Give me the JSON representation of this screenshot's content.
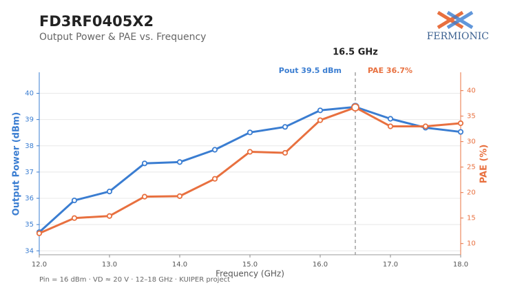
{
  "chart_data": {
    "type": "line",
    "title": "FD3RF0405X2",
    "subtitle": "Output Power & PAE vs. Frequency",
    "logo": "FERMIONIC",
    "xlabel": "Frequency (GHz)",
    "ylabel": "Output Power (dBm)",
    "y2label": "PAE (%)",
    "footnote": "Pin = 16 dBm · VD ≈ 20 V · 12–18 GHz · KUIPER project",
    "x": [
      12.0,
      12.5,
      13.0,
      13.5,
      14.0,
      14.5,
      15.0,
      15.5,
      16.0,
      16.5,
      17.0,
      17.5,
      18.0
    ],
    "series": [
      {
        "name": "Pout",
        "color": "#3a7dd1",
        "axis": "y",
        "values": [
          34.71,
          35.92,
          36.26,
          37.33,
          37.38,
          37.85,
          38.51,
          38.72,
          39.35,
          39.48,
          39.03,
          38.69,
          38.53
        ]
      },
      {
        "name": "PAE",
        "color": "#e8703f",
        "axis": "y2",
        "values": [
          12.0,
          15.0,
          15.4,
          19.2,
          19.3,
          22.7,
          28.0,
          27.8,
          34.2,
          36.7,
          33.0,
          33.0,
          33.6
        ]
      }
    ],
    "marker": {
      "x": 16.5,
      "label": "16.5 GHz",
      "annotations": [
        "Pout 39.5 dBm",
        "PAE 36.7%"
      ]
    },
    "xlim": [
      12,
      18
    ],
    "xticks": [
      {
        "value": 12,
        "label": "12.0"
      },
      {
        "value": 13,
        "label": "13.0"
      },
      {
        "value": 14,
        "label": "14.0"
      },
      {
        "value": 15,
        "label": "15.0"
      },
      {
        "value": 16,
        "label": "16.0"
      },
      {
        "value": 17,
        "label": "17.0"
      },
      {
        "value": 18,
        "label": "18.0"
      }
    ],
    "ylim": [
      33.85,
      40.8
    ],
    "yticks": [
      34,
      35,
      36,
      37,
      38,
      39,
      40
    ],
    "y2lim": [
      7.8,
      43.6
    ],
    "y2ticks": [
      10,
      15,
      20,
      25,
      30,
      35,
      40
    ],
    "grid": true
  }
}
